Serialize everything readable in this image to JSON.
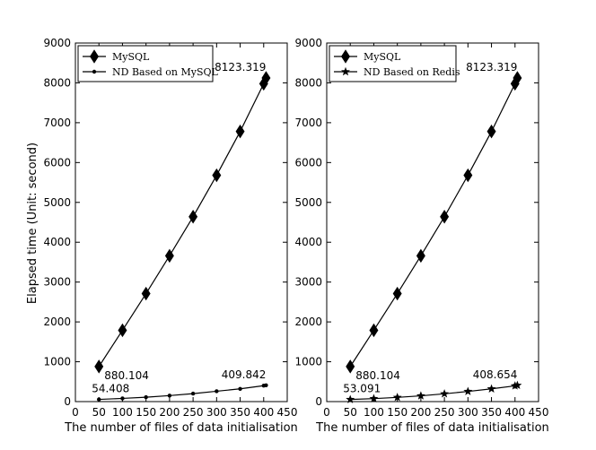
{
  "shared": {
    "ylabel": "Elapsed time (Unit: second)",
    "x_ticks": [
      0,
      50,
      100,
      150,
      200,
      250,
      300,
      350,
      400,
      450
    ],
    "y_ticks": [
      0,
      1000,
      2000,
      3000,
      4000,
      5000,
      6000,
      7000,
      8000,
      9000
    ]
  },
  "chart_data": [
    {
      "type": "line",
      "title": "",
      "xlabel": "The number of files of data initialisation",
      "ylabel": "Elapsed time (Unit: second)",
      "xlim": [
        0,
        450
      ],
      "ylim": [
        0,
        9000
      ],
      "grid": false,
      "legend_position": "top-left",
      "series": [
        {
          "name": "MySQL",
          "marker": "diamond",
          "color": "#000000",
          "x": [
            50,
            100,
            150,
            200,
            250,
            300,
            350,
            400,
            405
          ],
          "y": [
            880.104,
            1790,
            2710,
            3660,
            4640,
            5680,
            6780,
            7980,
            8123.319
          ]
        },
        {
          "name": "ND Based on MySQL",
          "marker": "circle",
          "color": "#000000",
          "x": [
            50,
            100,
            150,
            200,
            250,
            300,
            350,
            400,
            405
          ],
          "y": [
            54.408,
            80,
            110,
            150,
            200,
            260,
            320,
            400,
            409.842
          ]
        }
      ],
      "annotations": [
        {
          "text": "880.104",
          "x": 50,
          "y": 880.104,
          "anchor": "right-below"
        },
        {
          "text": "8123.319",
          "x": 405,
          "y": 8123.319,
          "anchor": "left-above"
        },
        {
          "text": "54.408",
          "x": 50,
          "y": 54.408,
          "anchor": "above"
        },
        {
          "text": "409.842",
          "x": 405,
          "y": 409.842,
          "anchor": "left-above"
        }
      ]
    },
    {
      "type": "line",
      "title": "",
      "xlabel": "The number of files of data initialisation",
      "ylabel": "",
      "xlim": [
        0,
        450
      ],
      "ylim": [
        0,
        9000
      ],
      "grid": false,
      "legend_position": "top-left",
      "series": [
        {
          "name": "MySQL",
          "marker": "diamond",
          "color": "#000000",
          "x": [
            50,
            100,
            150,
            200,
            250,
            300,
            350,
            400,
            405
          ],
          "y": [
            880.104,
            1790,
            2710,
            3660,
            4640,
            5680,
            6780,
            7980,
            8123.319
          ]
        },
        {
          "name": "ND Based on Redis",
          "marker": "star",
          "color": "#000000",
          "x": [
            50,
            100,
            150,
            200,
            250,
            300,
            350,
            400,
            405
          ],
          "y": [
            53.091,
            75,
            105,
            145,
            195,
            255,
            320,
            395,
            408.654
          ]
        }
      ],
      "annotations": [
        {
          "text": "880.104",
          "x": 50,
          "y": 880.104,
          "anchor": "right-below"
        },
        {
          "text": "8123.319",
          "x": 405,
          "y": 8123.319,
          "anchor": "left-above"
        },
        {
          "text": "53.091",
          "x": 50,
          "y": 53.091,
          "anchor": "above"
        },
        {
          "text": "408.654",
          "x": 405,
          "y": 408.654,
          "anchor": "left-above"
        }
      ]
    }
  ]
}
